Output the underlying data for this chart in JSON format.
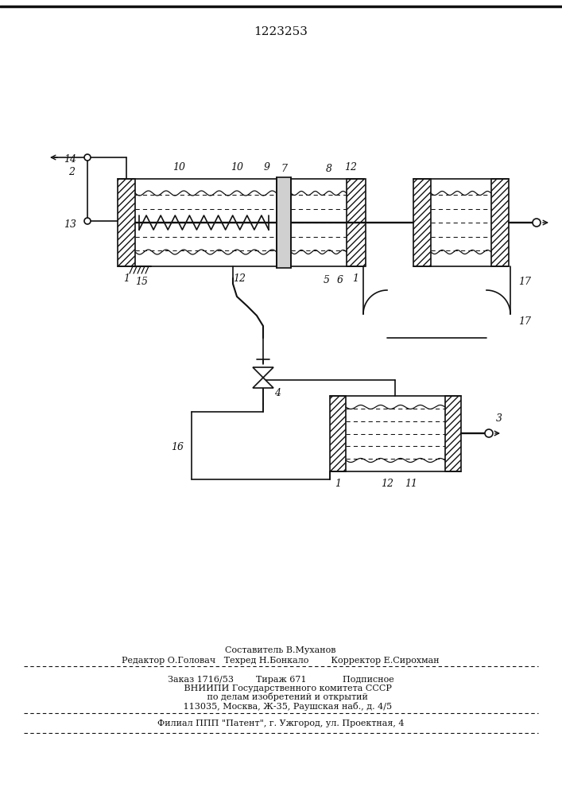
{
  "title": "1223253",
  "bg": "#ffffff",
  "lc": "#111111",
  "footer": {
    "l1": "Составитель В.Муханов",
    "l2": "Редактор О.Головач   Техред Н.Бонкало        Корректор Е.Сирохман",
    "l3": "Заказ 1716/53        Тираж 671             Подписное",
    "l4": "     ВНИИПИ Государственного комитета СССР",
    "l5": "     по делам изобретений и открытий",
    "l6": "     113035, Москва, Ж-35, Раушская наб., д. 4/5",
    "l7": "Филиал ППП \"Патент\", г. Ужгород, ул. Проектная, 4"
  }
}
